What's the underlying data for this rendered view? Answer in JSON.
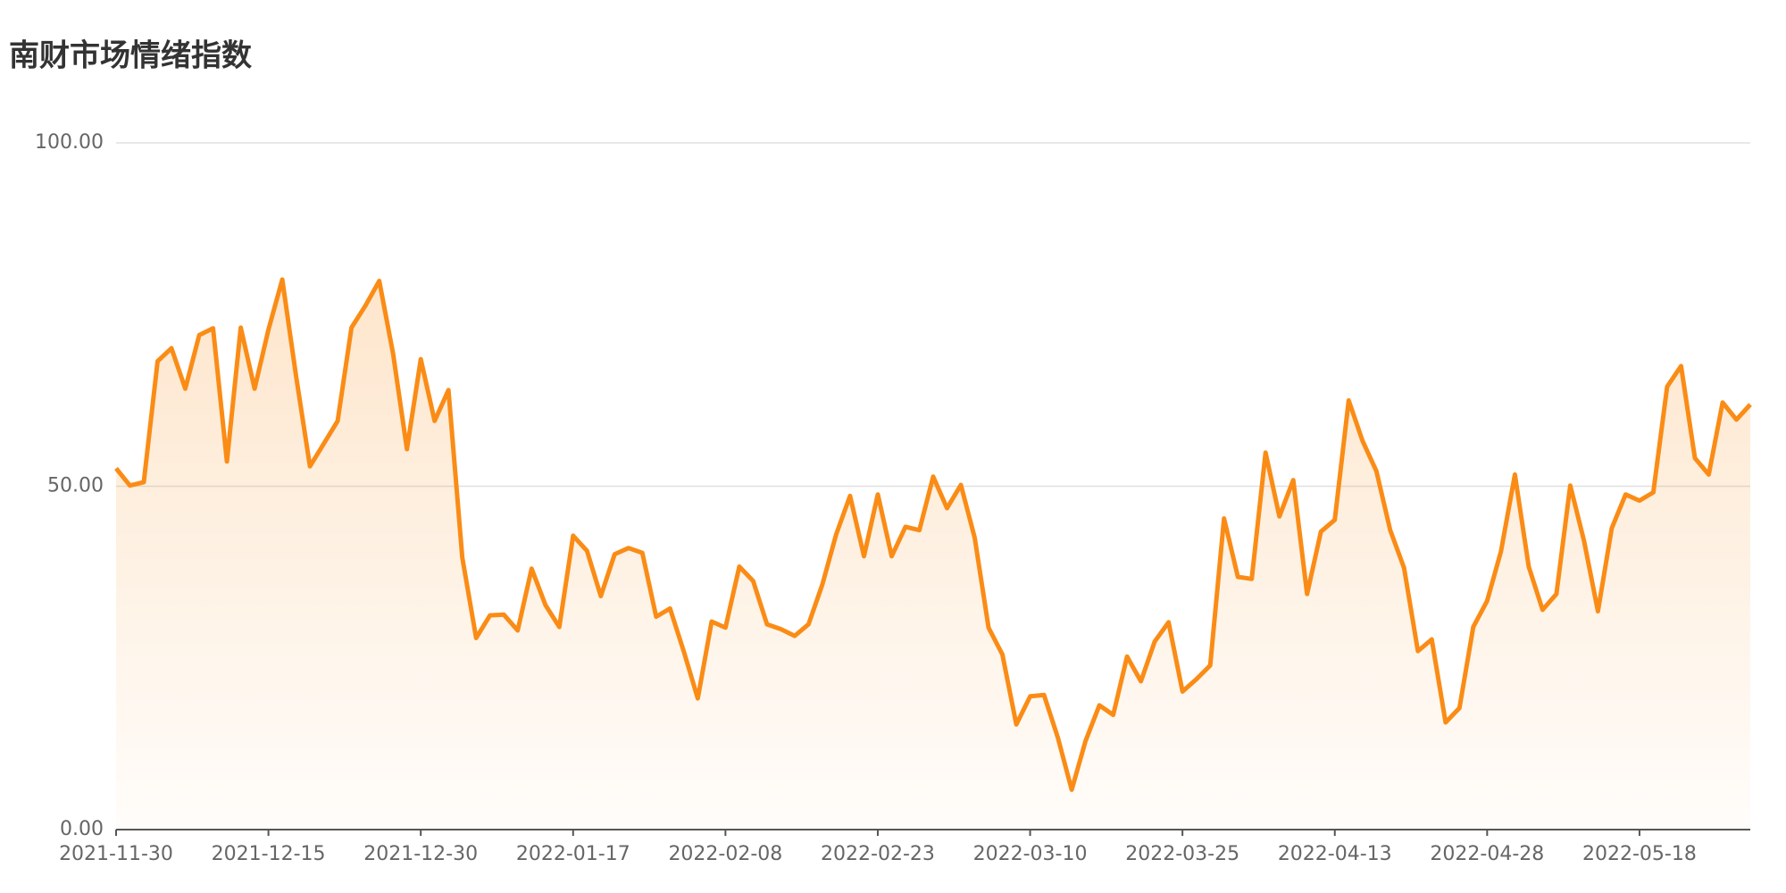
{
  "chart_data": {
    "type": "line",
    "title": "南财市场情绪指数",
    "categories": [
      "2021-11-30",
      null,
      null,
      null,
      null,
      null,
      null,
      null,
      null,
      null,
      null,
      "2021-12-15",
      null,
      null,
      null,
      null,
      null,
      null,
      null,
      null,
      null,
      null,
      "2021-12-30",
      null,
      null,
      null,
      null,
      null,
      null,
      null,
      null,
      null,
      null,
      "2022-01-17",
      null,
      null,
      null,
      null,
      null,
      null,
      null,
      null,
      null,
      null,
      "2022-02-08",
      null,
      null,
      null,
      null,
      null,
      null,
      null,
      null,
      null,
      null,
      "2022-02-23",
      null,
      null,
      null,
      null,
      null,
      null,
      null,
      null,
      null,
      null,
      "2022-03-10",
      null,
      null,
      null,
      null,
      null,
      null,
      null,
      null,
      null,
      null,
      "2022-03-25",
      null,
      null,
      null,
      null,
      null,
      null,
      null,
      null,
      null,
      null,
      "2022-04-13",
      null,
      null,
      null,
      null,
      null,
      null,
      null,
      null,
      null,
      null,
      "2022-04-28",
      null,
      null,
      null,
      null,
      null,
      null,
      null,
      null,
      null,
      null,
      "2022-05-18",
      null,
      null,
      null,
      null,
      null,
      null,
      null,
      null
    ],
    "series": [
      {
        "name": "南财市场情绪指数",
        "color": "#fa8c16",
        "values": [
          52.6,
          50.1,
          50.6,
          68.2,
          70.1,
          64.2,
          72.0,
          73.0,
          53.6,
          73.1,
          64.2,
          72.8,
          80.1,
          66.0,
          52.9,
          56.2,
          59.5,
          73.1,
          76.3,
          79.9,
          69.3,
          55.4,
          68.5,
          59.5,
          64.0,
          39.6,
          27.9,
          31.2,
          31.3,
          29.0,
          38.0,
          32.7,
          29.5,
          42.8,
          40.6,
          34.0,
          40.1,
          41.0,
          40.3,
          31.0,
          32.2,
          25.9,
          19.1,
          30.3,
          29.4,
          38.3,
          36.2,
          29.9,
          29.2,
          28.2,
          29.9,
          35.7,
          43.0,
          48.6,
          39.8,
          48.8,
          39.8,
          44.1,
          43.6,
          51.4,
          46.8,
          50.2,
          42.5,
          29.4,
          25.5,
          15.3,
          19.4,
          19.6,
          13.4,
          5.8,
          12.9,
          18.1,
          16.7,
          25.2,
          21.6,
          27.4,
          30.2,
          20.1,
          21.9,
          23.9,
          45.3,
          36.8,
          36.5,
          54.9,
          45.6,
          50.9,
          34.3,
          43.4,
          45.1,
          62.5,
          56.6,
          52.2,
          43.6,
          38.1,
          26.0,
          27.7,
          15.6,
          17.7,
          29.5,
          33.3,
          40.5,
          51.7,
          38.3,
          32.0,
          34.3,
          50.1,
          42.0,
          31.8,
          43.9,
          48.8,
          47.9,
          49.1,
          64.5,
          67.5,
          54.1,
          51.7,
          62.2,
          59.7,
          61.9
        ]
      }
    ],
    "ylim": [
      0,
      100
    ],
    "yticks": [
      {
        "value": 0,
        "label": "0.00"
      },
      {
        "value": 50,
        "label": "50.00"
      },
      {
        "value": 100,
        "label": "100.00"
      }
    ],
    "grid": true,
    "area": true
  }
}
